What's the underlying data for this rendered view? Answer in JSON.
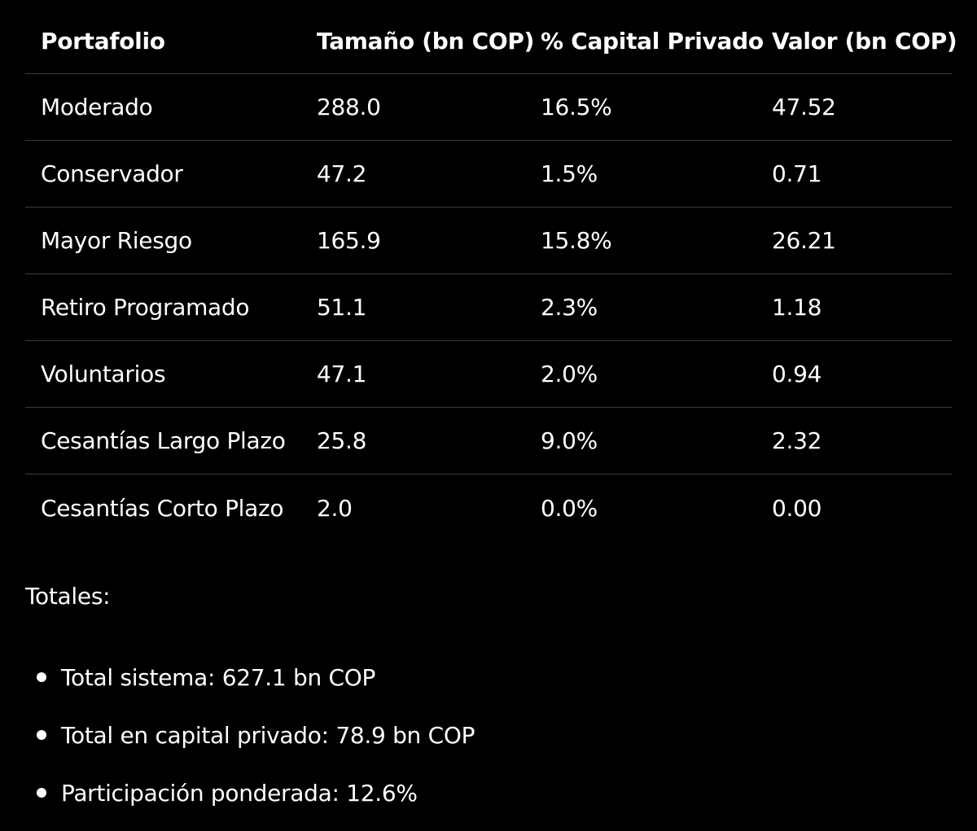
{
  "table": {
    "headers": [
      "Portafolio",
      "Tamaño (bn COP)",
      "% Capital Privado",
      "Valor (bn COP)"
    ],
    "rows": [
      [
        "Moderado",
        "288.0",
        "16.5%",
        "47.52"
      ],
      [
        "Conservador",
        "47.2",
        "1.5%",
        "0.71"
      ],
      [
        "Mayor Riesgo",
        "165.9",
        "15.8%",
        "26.21"
      ],
      [
        "Retiro Programado",
        "51.1",
        "2.3%",
        "1.18"
      ],
      [
        "Voluntarios",
        "47.1",
        "2.0%",
        "0.94"
      ],
      [
        "Cesantías Largo Plazo",
        "25.8",
        "9.0%",
        "2.32"
      ],
      [
        "Cesantías Corto Plazo",
        "2.0",
        "0.0%",
        "0.00"
      ]
    ]
  },
  "totals": {
    "title": "Totales:",
    "items": [
      "Total sistema: 627.1 bn COP",
      "Total en capital privado: 78.9 bn COP",
      "Participación ponderada: 12.6%"
    ]
  }
}
